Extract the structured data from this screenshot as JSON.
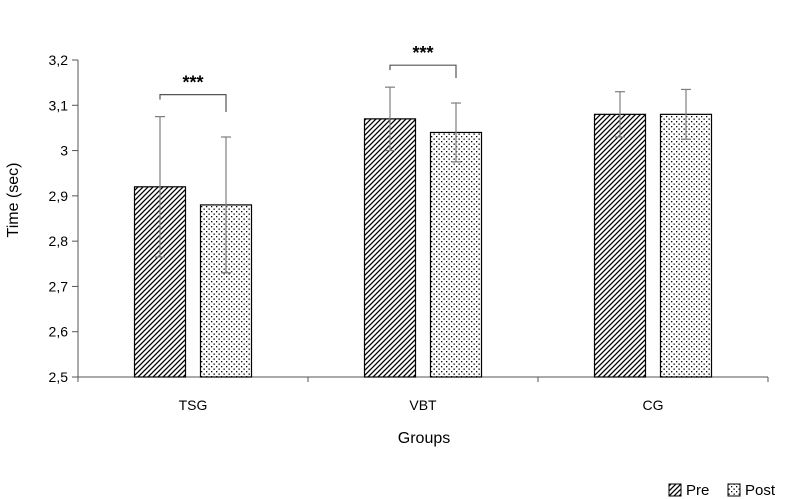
{
  "chart_data": {
    "type": "bar",
    "xlabel": "Groups",
    "ylabel": "Time (sec)",
    "ylim": [
      2.5,
      3.2
    ],
    "yticks": [
      "2,5",
      "2,6",
      "2,7",
      "2,8",
      "2,9",
      "3",
      "3,1",
      "3,2"
    ],
    "ytick_values": [
      2.5,
      2.6,
      2.7,
      2.8,
      2.9,
      3.0,
      3.1,
      3.2
    ],
    "categories": [
      "TSG",
      "VBT",
      "CG"
    ],
    "series": [
      {
        "name": "Pre",
        "values": [
          2.92,
          3.07,
          3.08
        ],
        "error": [
          0.155,
          0.07,
          0.05
        ],
        "pattern": "diagonal-hatch"
      },
      {
        "name": "Post",
        "values": [
          2.88,
          3.04,
          3.08
        ],
        "error": [
          0.15,
          0.065,
          0.055
        ],
        "pattern": "dots"
      }
    ],
    "grid": false,
    "legend_position": "bottom-right",
    "significance": [
      {
        "category": "TSG",
        "label": "***"
      },
      {
        "category": "VBT",
        "label": "***"
      }
    ]
  }
}
